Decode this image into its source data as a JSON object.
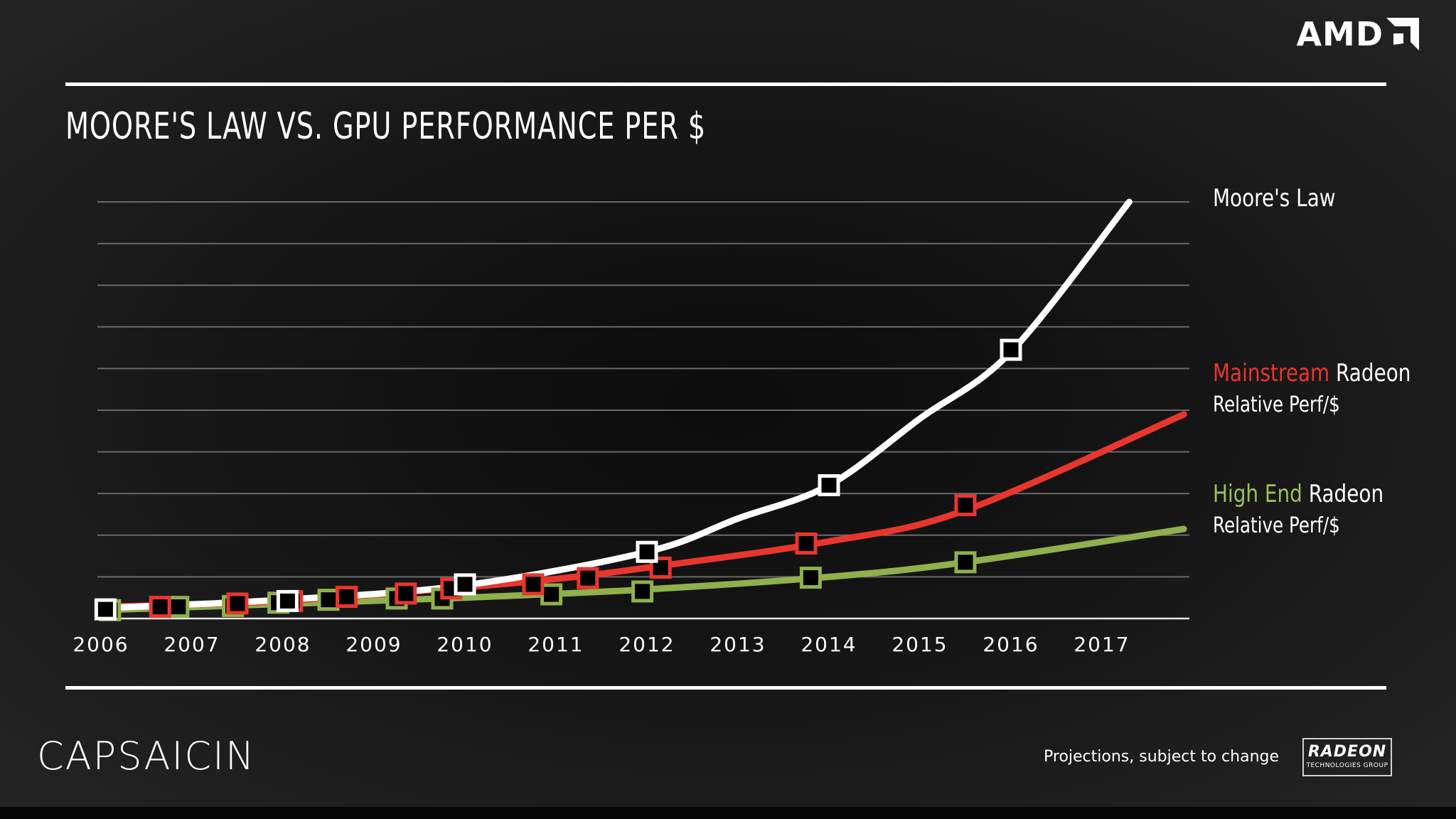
{
  "slide": {
    "title": "MOORE'S LAW VS. GPU PERFORMANCE PER $",
    "brand": "CAPSAICIN",
    "footnote": "Projections, subject to change",
    "company_logo_text": "AMD",
    "radeon_logo": {
      "word": "RADEON",
      "sub": "TECHNOLOGIES GROUP"
    }
  },
  "chart_data": {
    "type": "line",
    "title": "MOORE'S LAW VS. GPU PERFORMANCE PER $",
    "x_ticks": [
      "2006",
      "2007",
      "2008",
      "2009",
      "2010",
      "2011",
      "2012",
      "2013",
      "2014",
      "2015",
      "2016",
      "2017"
    ],
    "xlim": [
      2006,
      2017.95
    ],
    "ylim": [
      0,
      10
    ],
    "grid": true,
    "legend_placement": "right, beside line ends",
    "series": [
      {
        "name": "Moore's Law",
        "label_parts": [
          {
            "text": "Moore's Law",
            "color": "#ffffff"
          }
        ],
        "color": "#ffffff",
        "marker_fill": "#000000",
        "curve": {
          "x": [
            2006,
            2008,
            2010,
            2012,
            2013,
            2014,
            2015,
            2016,
            2017.3
          ],
          "y": [
            0.25,
            0.45,
            0.8,
            1.6,
            2.4,
            3.2,
            4.8,
            6.4,
            10.0
          ]
        },
        "markers": {
          "x": [
            2006.05,
            2008.05,
            2010.0,
            2012.0,
            2014.0,
            2016.0
          ],
          "y": [
            0.22,
            0.42,
            0.82,
            1.6,
            3.2,
            6.45
          ]
        }
      },
      {
        "name": "Mainstream Radeon Relative Perf/$",
        "label_parts": [
          {
            "text": "Mainstream",
            "color": "#e8362f"
          },
          {
            "text": " Radeon",
            "color": "#ffffff"
          }
        ],
        "label_line2": "Relative Perf/$",
        "color": "#e8362f",
        "marker_fill": "#000000",
        "curve": {
          "x": [
            2006,
            2008,
            2010,
            2011,
            2012,
            2014,
            2015.5,
            2017.9
          ],
          "y": [
            0.28,
            0.42,
            0.75,
            0.95,
            1.22,
            1.85,
            2.6,
            4.9
          ]
        },
        "markers": {
          "x": [
            2006.65,
            2007.5,
            2008.1,
            2008.7,
            2009.35,
            2009.85,
            2010.75,
            2011.35,
            2012.15,
            2013.75,
            2015.5
          ],
          "y": [
            0.28,
            0.36,
            0.42,
            0.52,
            0.6,
            0.72,
            0.82,
            0.97,
            1.22,
            1.8,
            2.72
          ]
        }
      },
      {
        "name": "High End Radeon Relative Perf/$",
        "label_parts": [
          {
            "text": "High End",
            "color": "#9dc05a"
          },
          {
            "text": " Radeon",
            "color": "#ffffff"
          }
        ],
        "label_line2": "Relative Perf/$",
        "color": "#8fb04c",
        "marker_fill": "#000000",
        "curve": {
          "x": [
            2006,
            2008,
            2010,
            2012,
            2014,
            2015.5,
            2017.9
          ],
          "y": [
            0.2,
            0.35,
            0.5,
            0.7,
            1.0,
            1.35,
            2.15
          ]
        },
        "markers": {
          "x": [
            2006.1,
            2006.85,
            2007.45,
            2007.95,
            2008.5,
            2009.25,
            2009.75,
            2010.95,
            2011.95,
            2013.8,
            2015.5
          ],
          "y": [
            0.2,
            0.28,
            0.3,
            0.38,
            0.45,
            0.48,
            0.48,
            0.58,
            0.65,
            0.98,
            1.35
          ]
        }
      }
    ]
  }
}
